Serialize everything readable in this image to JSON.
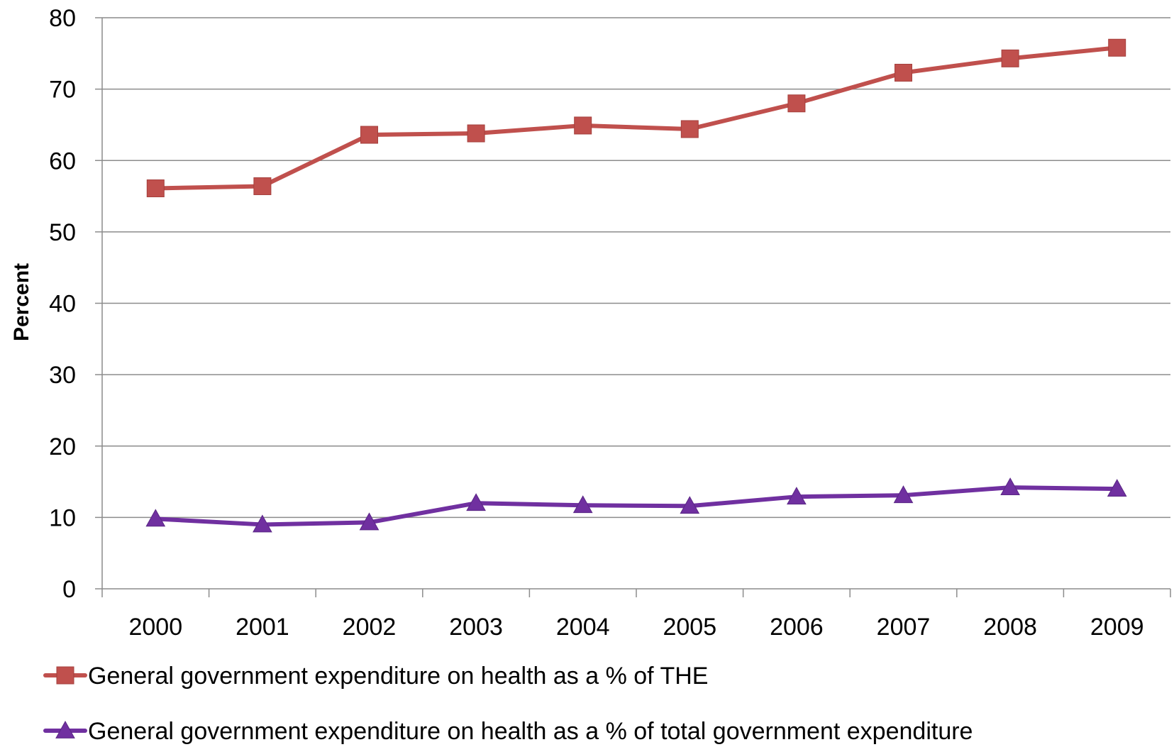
{
  "chart_data": {
    "type": "line",
    "title": "",
    "xlabel": "",
    "ylabel": "Percent",
    "ylim": [
      0,
      80
    ],
    "yticks": [
      "0",
      "10",
      "20",
      "30",
      "40",
      "50",
      "60",
      "70",
      "80"
    ],
    "categories": [
      "2000",
      "2001",
      "2002",
      "2003",
      "2004",
      "2005",
      "2006",
      "2007",
      "2008",
      "2009"
    ],
    "grid": "horizontal",
    "legend_position": "bottom",
    "series": [
      {
        "name": "General government expenditure on health as a % of THE",
        "color": "#C0504D",
        "marker": "square",
        "values": [
          56.1,
          56.4,
          63.6,
          63.8,
          64.9,
          64.4,
          68.0,
          72.3,
          74.3,
          75.8
        ]
      },
      {
        "name": "General government expenditure on health as a % of total government expenditure",
        "color": "#7030A0",
        "marker": "triangle",
        "values": [
          9.8,
          9.0,
          9.3,
          12.0,
          11.7,
          11.6,
          12.9,
          13.1,
          14.2,
          14.0
        ]
      }
    ]
  }
}
